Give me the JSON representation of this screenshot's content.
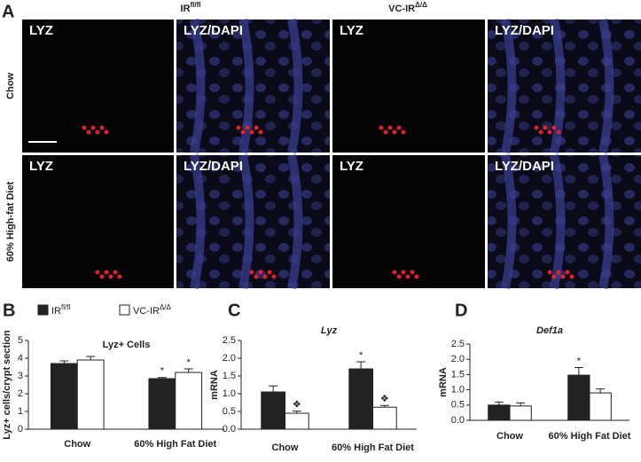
{
  "panel_a": {
    "label": "A",
    "columns": [
      {
        "name": "IR",
        "superscript": "fl/fl"
      },
      {
        "name": "VC-IR",
        "superscript": "Δ/Δ"
      }
    ],
    "rows": [
      "Chow",
      "60% High-fat Diet"
    ],
    "stains": [
      "LYZ",
      "LYZ/DAPI"
    ]
  },
  "chart_data": [
    {
      "type": "bar",
      "label": "B",
      "title": "Lyz+ Cells",
      "y_label": "Lyz+ cells/crypt section",
      "title_italic": false,
      "categories": [
        "Chow",
        "60% High Fat Diet"
      ],
      "series": [
        {
          "name": "IR",
          "superscript": "fl/fl",
          "color": "#222222",
          "values": [
            3.7,
            2.85
          ],
          "errors": [
            0.15,
            0.06
          ]
        },
        {
          "name": "VC-IR",
          "superscript": "Δ/Δ",
          "color": "#ffffff",
          "values": [
            3.9,
            3.2
          ],
          "errors": [
            0.2,
            0.2
          ]
        }
      ],
      "ylim": [
        0,
        5
      ],
      "yticks": [
        0,
        1,
        2,
        3,
        4,
        5
      ],
      "annotations": [
        {
          "text": "*",
          "category": 1,
          "series": 0
        },
        {
          "text": "*",
          "category": 1,
          "series": 1
        }
      ]
    },
    {
      "type": "bar",
      "label": "C",
      "title": "Lyz",
      "y_label": "mRNA",
      "title_italic": true,
      "categories": [
        "Chow",
        "60% High Fat Diet"
      ],
      "series": [
        {
          "name": "IR",
          "superscript": "fl/fl",
          "color": "#222222",
          "values": [
            1.05,
            1.7
          ],
          "errors": [
            0.17,
            0.2
          ]
        },
        {
          "name": "VC-IR",
          "superscript": "Δ/Δ",
          "color": "#ffffff",
          "values": [
            0.45,
            0.62
          ],
          "errors": [
            0.06,
            0.05
          ]
        }
      ],
      "ylim": [
        0,
        2.5
      ],
      "yticks": [
        {
          "value": 0,
          "label": "0.0"
        },
        0.5,
        {
          "value": 1,
          "label": "1.0"
        },
        1.5,
        {
          "value": 2,
          "label": "2.0"
        },
        2.5
      ],
      "annotations": [
        {
          "text": "❖",
          "category": 0,
          "series": 1
        },
        {
          "text": "*",
          "category": 1,
          "series": 0
        },
        {
          "text": "❖",
          "category": 1,
          "series": 1
        }
      ]
    },
    {
      "type": "bar",
      "label": "D",
      "title": "Def1a",
      "y_label": "mRNA",
      "title_italic": true,
      "categories": [
        "Chow",
        "60% High Fat Diet"
      ],
      "series": [
        {
          "name": "IR",
          "superscript": "fl/fl",
          "color": "#222222",
          "values": [
            0.5,
            1.48
          ],
          "errors": [
            0.1,
            0.25
          ]
        },
        {
          "name": "VC-IR",
          "superscript": "Δ/Δ",
          "color": "#ffffff",
          "values": [
            0.47,
            0.9
          ],
          "errors": [
            0.1,
            0.13
          ]
        }
      ],
      "ylim": [
        0,
        2.5
      ],
      "yticks": [
        {
          "value": 0,
          "label": "0.0"
        },
        0.5,
        {
          "value": 1,
          "label": "1.0"
        },
        1.5,
        {
          "value": 2,
          "label": "2.0"
        },
        2.5
      ],
      "annotations": [
        {
          "text": "*",
          "category": 1,
          "series": 0
        }
      ]
    }
  ]
}
